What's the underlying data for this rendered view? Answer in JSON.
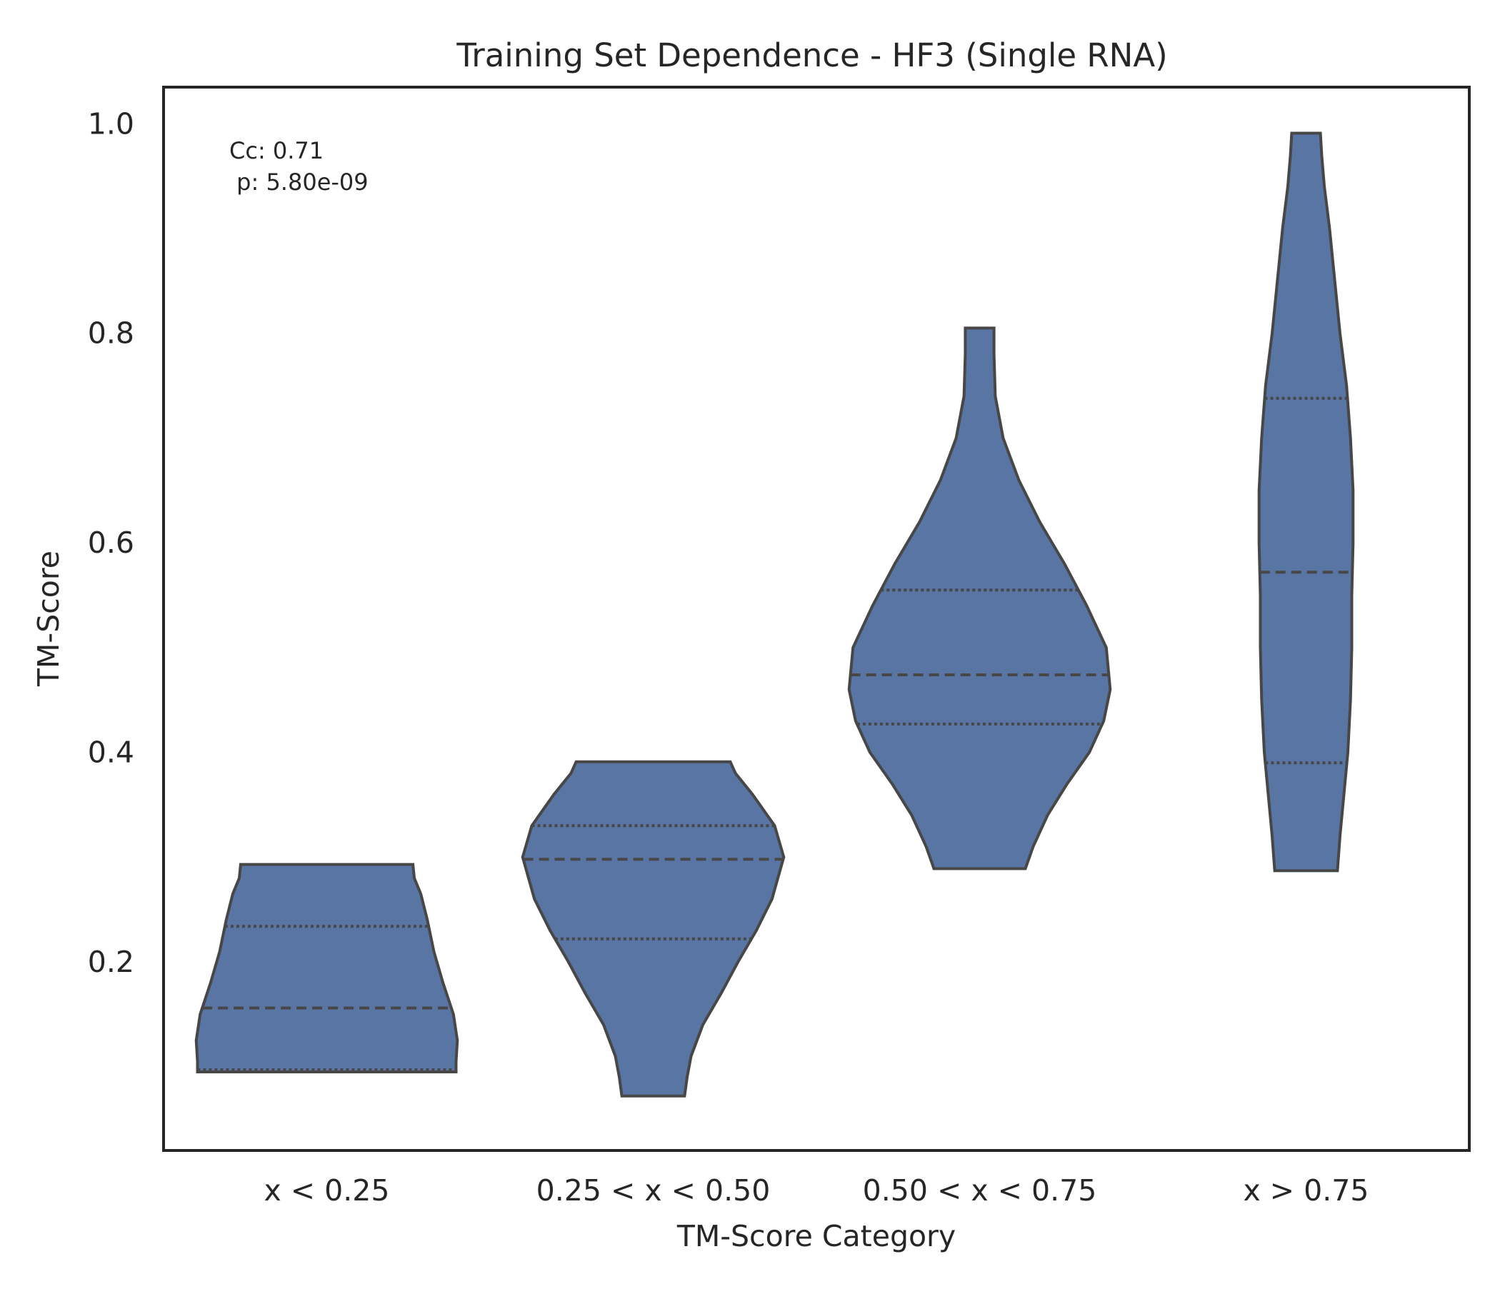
{
  "chart_data": {
    "type": "violin",
    "title": "Training Set Dependence - HF3 (Single RNA)",
    "xlabel": "TM-Score Category",
    "ylabel": "TM-Score",
    "ylim": [
      0.02,
      1.035
    ],
    "yticks": [
      0.2,
      0.4,
      0.6,
      0.8,
      1.0
    ],
    "ytick_labels": [
      "0.2",
      "0.4",
      "0.6",
      "0.8",
      "1.0"
    ],
    "grid": false,
    "annotation": {
      "line1": "Cc: 0.71",
      "line2": " p: 5.80e-09"
    },
    "colors": {
      "violin_fill": "#5975a4",
      "edge": "#474747",
      "frame": "#262626"
    },
    "categories": [
      "x < 0.25",
      "0.25 < x < 0.50",
      "0.50 < x < 0.75",
      "x > 0.75"
    ],
    "violins": [
      {
        "category": "x < 0.25",
        "min": 0.095,
        "max": 0.293,
        "q1": 0.097,
        "median": 0.156,
        "q3": 0.234,
        "profile": [
          [
            0.095,
            0.99
          ],
          [
            0.105,
            0.99
          ],
          [
            0.125,
            1.0
          ],
          [
            0.15,
            0.97
          ],
          [
            0.18,
            0.89
          ],
          [
            0.21,
            0.82
          ],
          [
            0.24,
            0.77
          ],
          [
            0.265,
            0.72
          ],
          [
            0.28,
            0.67
          ],
          [
            0.293,
            0.66
          ]
        ]
      },
      {
        "category": "0.25 < x < 0.50",
        "min": 0.072,
        "max": 0.391,
        "q1": 0.222,
        "median": 0.298,
        "q3": 0.33,
        "profile": [
          [
            0.072,
            0.24
          ],
          [
            0.09,
            0.26
          ],
          [
            0.11,
            0.29
          ],
          [
            0.14,
            0.38
          ],
          [
            0.17,
            0.52
          ],
          [
            0.2,
            0.65
          ],
          [
            0.23,
            0.79
          ],
          [
            0.26,
            0.91
          ],
          [
            0.3,
            1.0
          ],
          [
            0.33,
            0.93
          ],
          [
            0.36,
            0.76
          ],
          [
            0.38,
            0.63
          ],
          [
            0.391,
            0.59
          ]
        ]
      },
      {
        "category": "0.50 < x < 0.75",
        "min": 0.289,
        "max": 0.805,
        "q1": 0.427,
        "median": 0.474,
        "q3": 0.555,
        "profile": [
          [
            0.289,
            0.35
          ],
          [
            0.31,
            0.41
          ],
          [
            0.34,
            0.52
          ],
          [
            0.37,
            0.67
          ],
          [
            0.4,
            0.84
          ],
          [
            0.43,
            0.95
          ],
          [
            0.46,
            1.0
          ],
          [
            0.5,
            0.97
          ],
          [
            0.54,
            0.82
          ],
          [
            0.58,
            0.65
          ],
          [
            0.62,
            0.46
          ],
          [
            0.66,
            0.3
          ],
          [
            0.7,
            0.18
          ],
          [
            0.74,
            0.12
          ],
          [
            0.78,
            0.11
          ],
          [
            0.805,
            0.11
          ]
        ]
      },
      {
        "category": "x > 0.75",
        "min": 0.287,
        "max": 0.991,
        "q1": 0.39,
        "median": 0.572,
        "q3": 0.738,
        "profile": [
          [
            0.287,
            0.24
          ],
          [
            0.32,
            0.26
          ],
          [
            0.36,
            0.29
          ],
          [
            0.4,
            0.32
          ],
          [
            0.45,
            0.34
          ],
          [
            0.5,
            0.35
          ],
          [
            0.55,
            0.35
          ],
          [
            0.6,
            0.36
          ],
          [
            0.65,
            0.36
          ],
          [
            0.7,
            0.34
          ],
          [
            0.75,
            0.31
          ],
          [
            0.8,
            0.26
          ],
          [
            0.85,
            0.22
          ],
          [
            0.9,
            0.18
          ],
          [
            0.94,
            0.14
          ],
          [
            0.97,
            0.12
          ],
          [
            0.991,
            0.11
          ]
        ]
      }
    ]
  }
}
